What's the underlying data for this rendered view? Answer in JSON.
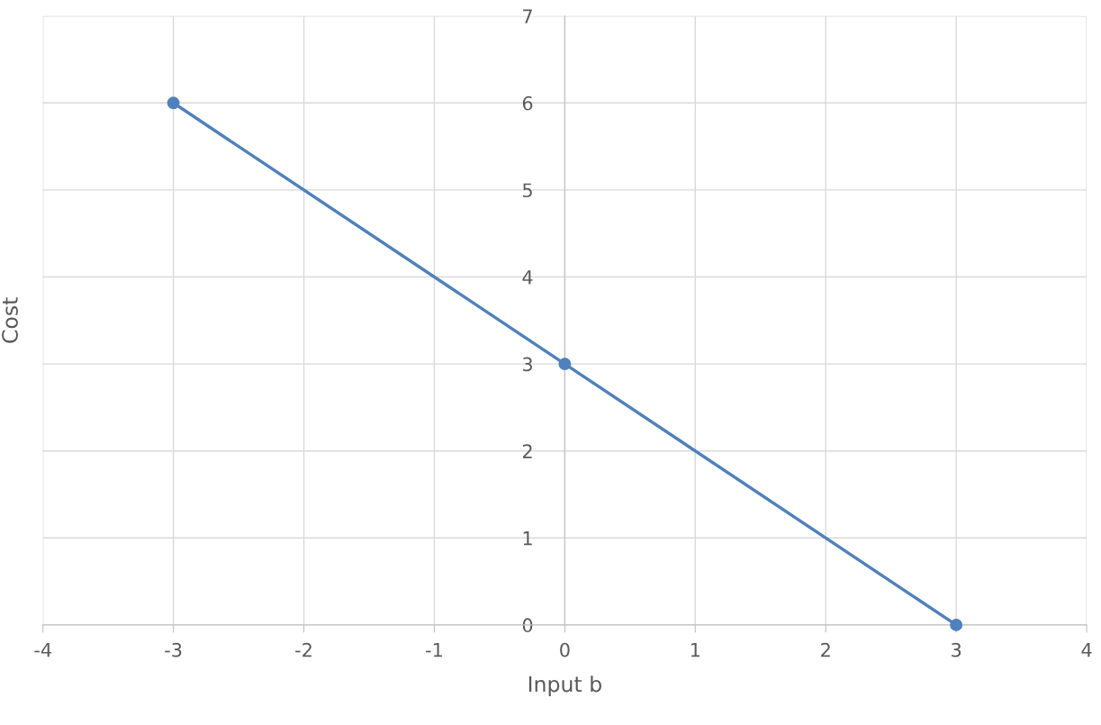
{
  "chart_data": {
    "type": "line",
    "xlabel": "Input b",
    "ylabel": "Cost",
    "x": [
      -3,
      0,
      3
    ],
    "series": [
      {
        "color": "#4f81bd",
        "values": [
          6,
          3,
          0
        ]
      }
    ],
    "xlim": [
      -4,
      4
    ],
    "xticks": [
      -4,
      -3,
      -2,
      -1,
      0,
      1,
      2,
      3,
      4
    ],
    "ylim": [
      0,
      7
    ],
    "yticks": [
      0,
      1,
      2,
      3,
      4,
      5,
      6,
      7
    ],
    "grid": true,
    "marker": "circle",
    "line_style": "solid"
  }
}
